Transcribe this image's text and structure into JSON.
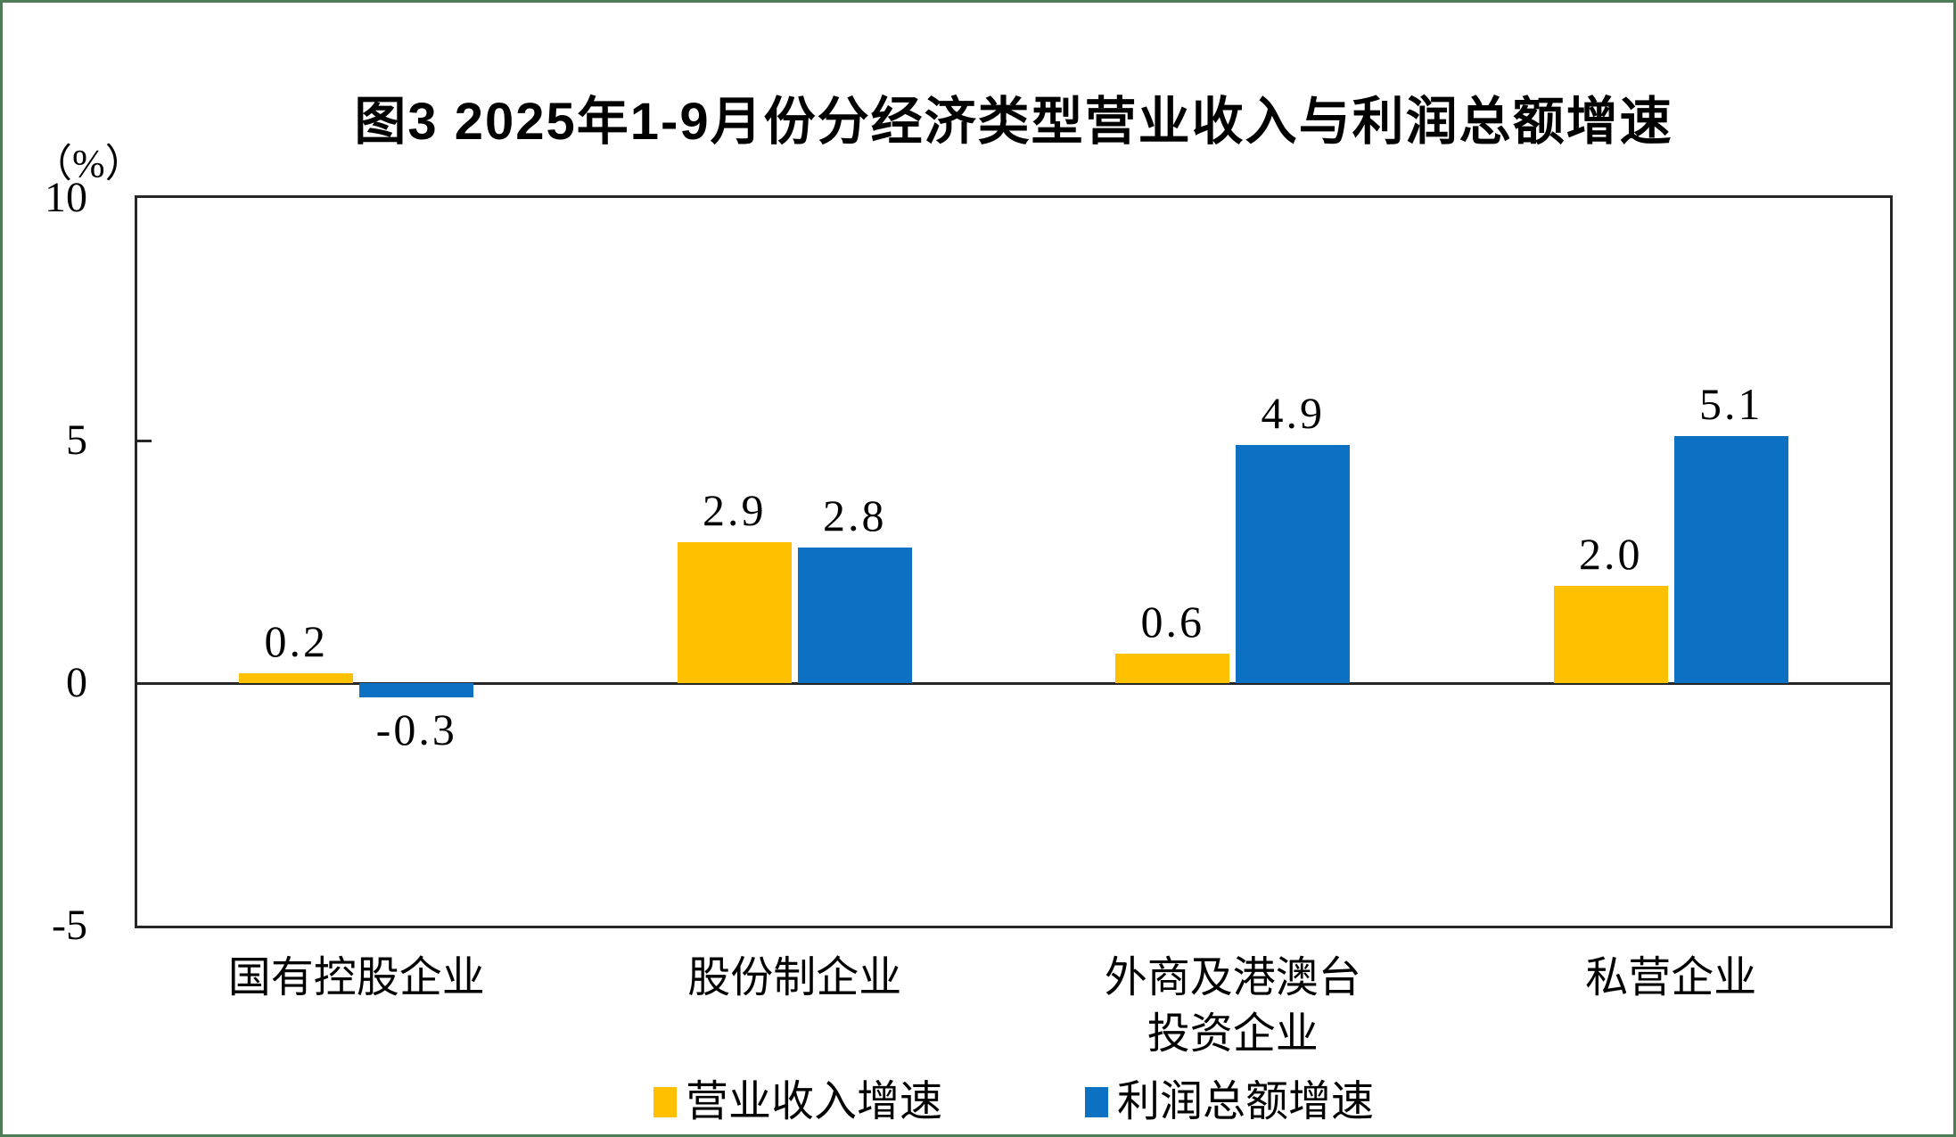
{
  "page": {
    "background": "#ffffff",
    "frame_color": "#4d7c57",
    "axis_color": "#262626"
  },
  "chart_data": {
    "type": "bar",
    "title": "图3 2025年1-9月份分经济类型营业收入与利润总额增速",
    "unit_label": "（%）",
    "xlabel": "",
    "ylabel": "（%）",
    "ylim": [
      -5,
      10
    ],
    "yticks": [
      10,
      5,
      0,
      -5
    ],
    "ytick_labels": [
      "10",
      "5",
      "0",
      "-5"
    ],
    "grid": false,
    "legend_position": "bottom",
    "categories": [
      "国有控股企业",
      "股份制企业",
      "外商及港澳台\n投资企业",
      "私营企业"
    ],
    "series": [
      {
        "name": "营业收入增速",
        "color": "#FFC000",
        "values": [
          0.2,
          2.9,
          0.6,
          2.0
        ],
        "value_labels": [
          "0.2",
          "2.9",
          "0.6",
          "2.0"
        ]
      },
      {
        "name": "利润总额增速",
        "color": "#0C71C3",
        "values": [
          -0.3,
          2.8,
          4.9,
          5.1
        ],
        "value_labels": [
          "-0.3",
          "2.8",
          "4.9",
          "5.1"
        ]
      }
    ]
  }
}
